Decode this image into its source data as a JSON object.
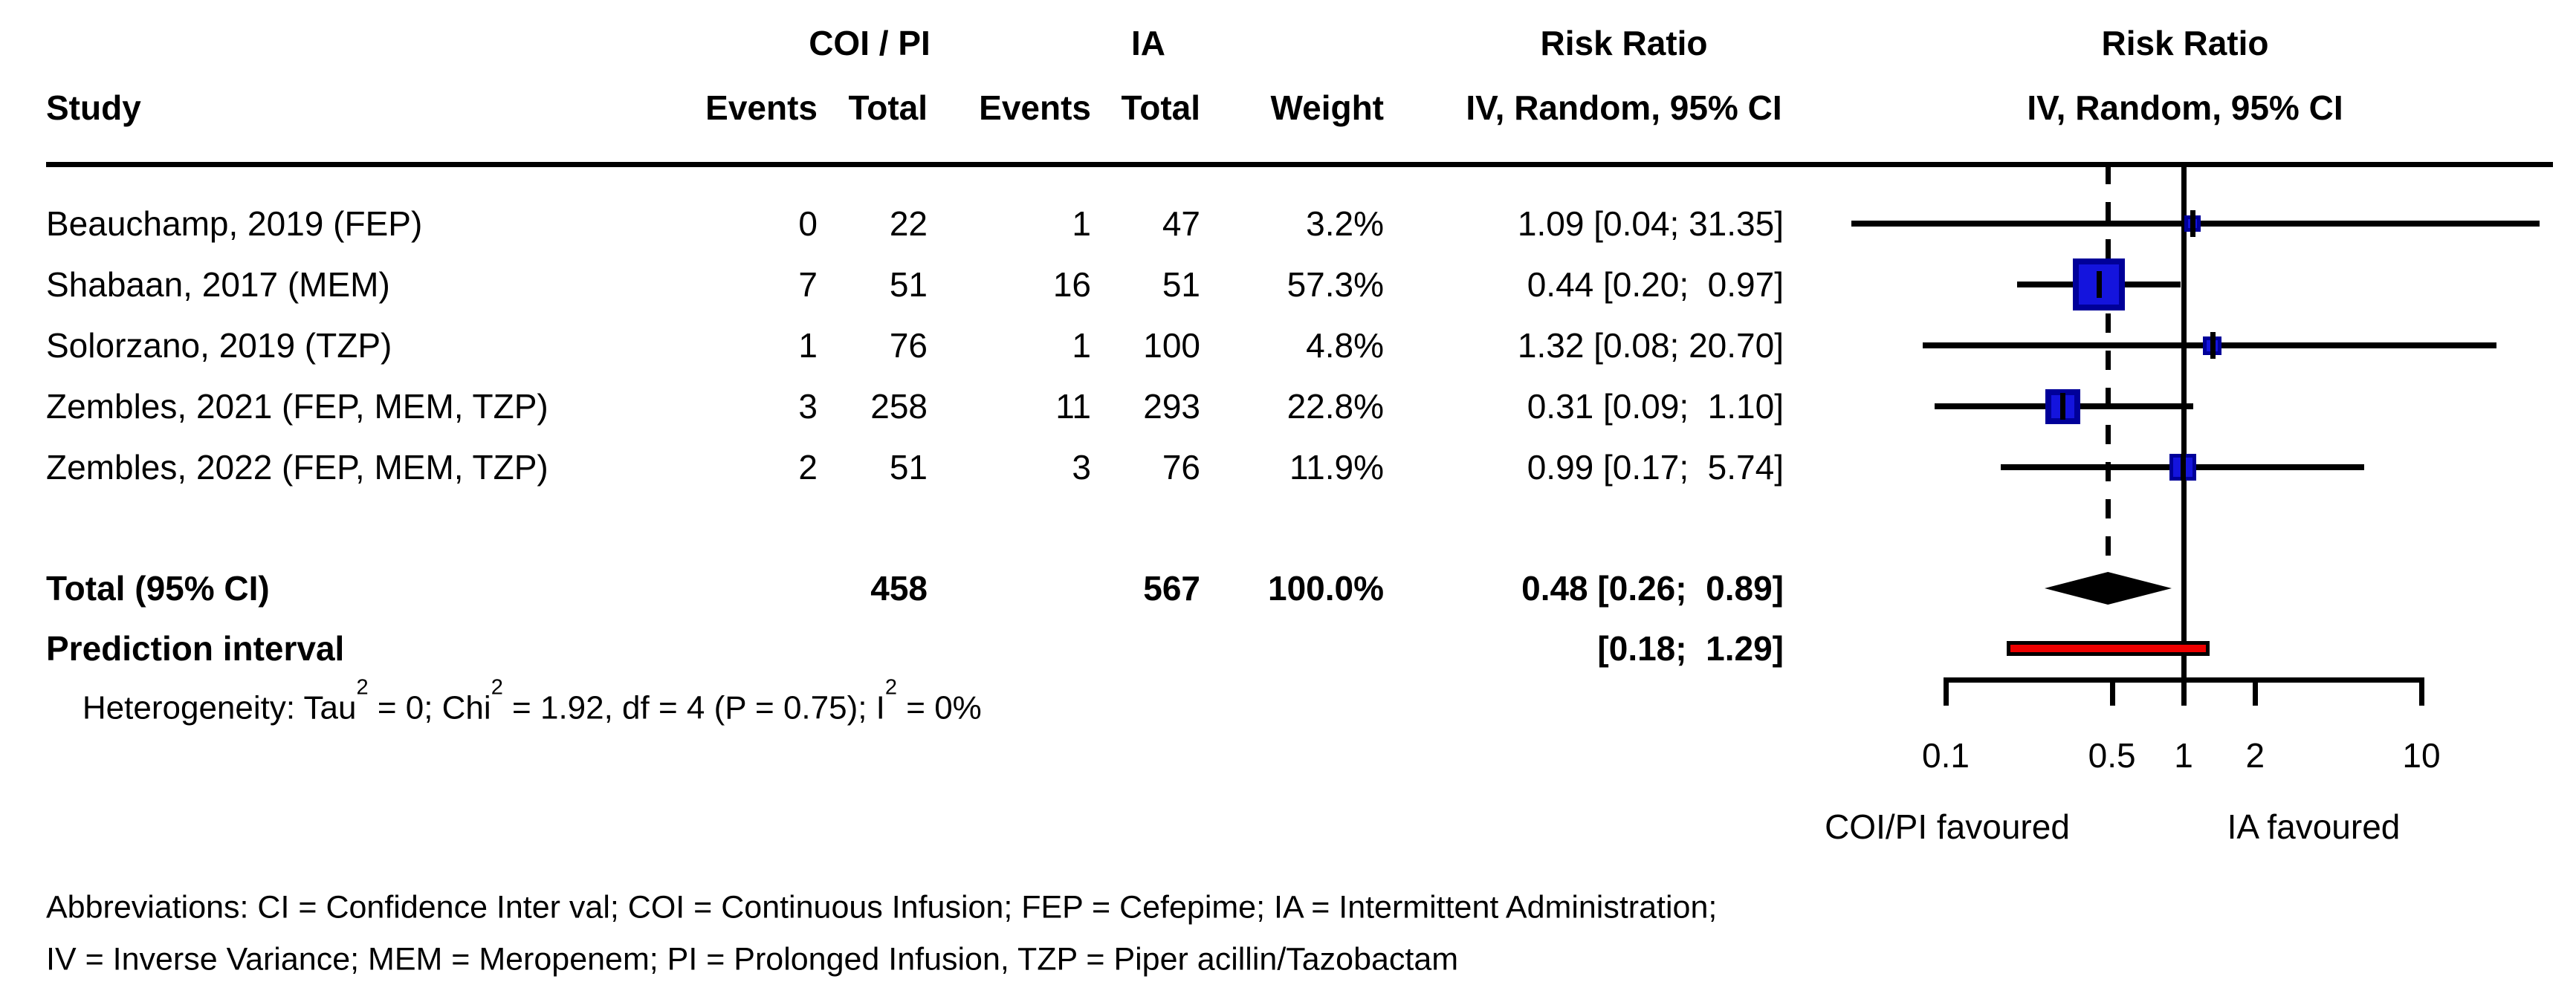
{
  "header": {
    "study": "Study",
    "group1_title": "COI / PI",
    "group2_title": "IA",
    "col_events_1": "Events",
    "col_total_1": "Total",
    "col_events_2": "Events",
    "col_total_2": "Total",
    "col_weight": "Weight",
    "risk_ratio_title": "Risk Ratio",
    "risk_ratio_sub": "IV, Random, 95% CI",
    "plot_title": "Risk Ratio",
    "plot_sub": "IV, Random, 95% CI"
  },
  "chart_data": {
    "type": "forest",
    "x_scale": "log10",
    "axis_ticks": [
      "0.1",
      "0.5",
      "1",
      "2",
      "10"
    ],
    "axis_tick_values": [
      0.1,
      0.5,
      1,
      2,
      10
    ],
    "null_value": 1,
    "overall_dashed_line_at": 0.48,
    "x_axis_left_label": "COI/PI favoured",
    "x_axis_right_label": "IA favoured",
    "studies": [
      {
        "name": "Beauchamp, 2019 (FEP)",
        "coi_events": "0",
        "coi_total": "22",
        "ia_events": "1",
        "ia_total": "47",
        "weight": "3.2%",
        "weight_pct": 3.2,
        "rr": 1.09,
        "ci_low": 0.04,
        "ci_high": 31.35,
        "rr_text": "1.09 [0.04; 31.35]"
      },
      {
        "name": "Shabaan, 2017 (MEM)",
        "coi_events": "7",
        "coi_total": "51",
        "ia_events": "16",
        "ia_total": "51",
        "weight": "57.3%",
        "weight_pct": 57.3,
        "rr": 0.44,
        "ci_low": 0.2,
        "ci_high": 0.97,
        "rr_text": "0.44 [0.20;  0.97]"
      },
      {
        "name": "Solorzano, 2019 (TZP)",
        "coi_events": "1",
        "coi_total": "76",
        "ia_events": "1",
        "ia_total": "100",
        "weight": "4.8%",
        "weight_pct": 4.8,
        "rr": 1.32,
        "ci_low": 0.08,
        "ci_high": 20.7,
        "rr_text": "1.32 [0.08; 20.70]"
      },
      {
        "name": "Zembles, 2021 (FEP, MEM, TZP)",
        "coi_events": "3",
        "coi_total": "258",
        "ia_events": "11",
        "ia_total": "293",
        "weight": "22.8%",
        "weight_pct": 22.8,
        "rr": 0.31,
        "ci_low": 0.09,
        "ci_high": 1.1,
        "rr_text": "0.31 [0.09;  1.10]"
      },
      {
        "name": "Zembles, 2022 (FEP, MEM, TZP)",
        "coi_events": "2",
        "coi_total": "51",
        "ia_events": "3",
        "ia_total": "76",
        "weight": "11.9%",
        "weight_pct": 11.9,
        "rr": 0.99,
        "ci_low": 0.17,
        "ci_high": 5.74,
        "rr_text": "0.99 [0.17;  5.74]"
      }
    ],
    "total": {
      "label": "Total (95% CI)",
      "coi_total": "458",
      "ia_total": "567",
      "weight": "100.0%",
      "rr": 0.48,
      "ci_low": 0.26,
      "ci_high": 0.89,
      "rr_text": "0.48 [0.26;  0.89]"
    },
    "prediction_interval": {
      "label": "Prediction interval",
      "ci_low": 0.18,
      "ci_high": 1.29,
      "rr_text": "[0.18;  1.29]"
    },
    "heterogeneity": {
      "pre": "Heterogeneity: Tau",
      "sup1": "2",
      "mid1": " = 0; Chi",
      "sup2": "2",
      "mid2": " = 1.92, df = 4 (P = 0.75); I",
      "sup3": "2",
      "post": " = 0%"
    }
  },
  "footer": {
    "line1": "Abbreviations: CI = Confidence Inter val; COI = Continuous Infusion; FEP = Cefepime; IA = Intermittent Administration;",
    "line2": "IV = Inverse Variance; MEM = Meropenem; PI = Prolonged Infusion, TZP = Piper acillin/Tazobactam"
  },
  "colors": {
    "square_fill": "#1414DD",
    "square_border": "#000099",
    "prediction_fill": "#EE0000",
    "prediction_border": "#000000",
    "line": "#000000"
  }
}
